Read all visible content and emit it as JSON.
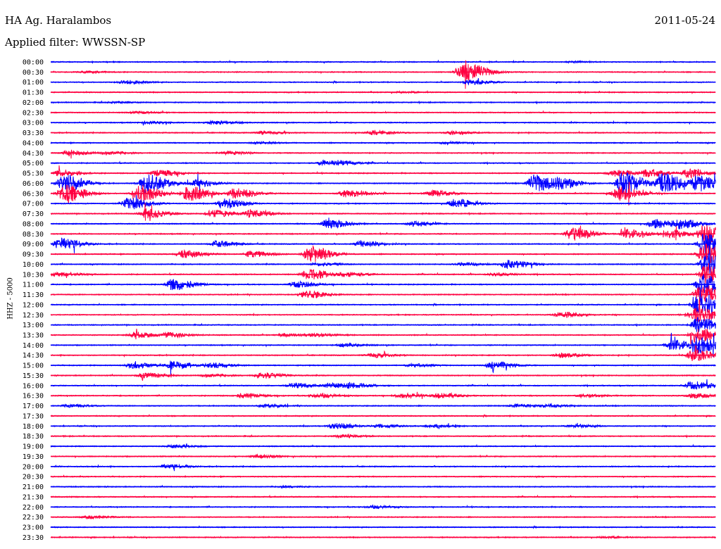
{
  "header": {
    "station": "HA Ag. Haralambos",
    "date": "2011-05-24",
    "filter": "Applied filter: WWSSN-SP"
  },
  "colors": {
    "trace_a": "#0000ff",
    "trace_b": "#ff0040",
    "text": "#000000",
    "background": "#ffffff"
  },
  "chart_data": {
    "type": "line",
    "title": "HA Ag. Haralambos",
    "subtitle": "Applied filter: WWSSN-SP",
    "date": "2011-05-24",
    "ylabel": "HHZ - 5000",
    "xlabel": "",
    "x_range_minutes": [
      0,
      30
    ],
    "grid": false,
    "legend": "none",
    "series_colors": [
      "#0000ff",
      "#ff0040"
    ],
    "rows": [
      {
        "label": "00:00",
        "events": [
          [
            23.5,
            0.6
          ]
        ]
      },
      {
        "label": "00:30",
        "events": [
          [
            18.6,
            9
          ],
          [
            19.0,
            4
          ],
          [
            1.5,
            1
          ]
        ]
      },
      {
        "label": "01:00",
        "events": [
          [
            3.3,
            2.5
          ],
          [
            18.9,
            3
          ]
        ]
      },
      {
        "label": "01:30",
        "events": [
          [
            15.8,
            0.8
          ]
        ]
      },
      {
        "label": "02:00",
        "events": [
          [
            2.8,
            0.8
          ]
        ]
      },
      {
        "label": "02:30",
        "events": [
          [
            3.8,
            1.2
          ]
        ]
      },
      {
        "label": "03:00",
        "events": [
          [
            4.3,
            1.5
          ],
          [
            7.3,
            2.5
          ]
        ]
      },
      {
        "label": "03:30",
        "events": [
          [
            9.5,
            2
          ],
          [
            14.5,
            2.5
          ],
          [
            18.0,
            2
          ]
        ]
      },
      {
        "label": "04:00",
        "events": [
          [
            9.3,
            1.5
          ],
          [
            17.8,
            1.5
          ]
        ]
      },
      {
        "label": "04:30",
        "events": [
          [
            0.8,
            3
          ],
          [
            2.5,
            2
          ],
          [
            8.0,
            2
          ]
        ]
      },
      {
        "label": "05:00",
        "events": [
          [
            12.3,
            3
          ],
          [
            13.0,
            2
          ]
        ]
      },
      {
        "label": "05:30",
        "events": [
          [
            0.4,
            4
          ],
          [
            4.8,
            4
          ],
          [
            25.4,
            4
          ],
          [
            26.9,
            5
          ],
          [
            28.8,
            6
          ]
        ]
      },
      {
        "label": "06:00",
        "events": [
          [
            0.6,
            13
          ],
          [
            4.3,
            14
          ],
          [
            6.5,
            5
          ],
          [
            21.8,
            12
          ],
          [
            23.0,
            6
          ],
          [
            25.8,
            16
          ],
          [
            27.6,
            14
          ],
          [
            29.2,
            11
          ]
        ]
      },
      {
        "label": "06:30",
        "events": [
          [
            0.6,
            13
          ],
          [
            4.0,
            12
          ],
          [
            6.2,
            10
          ],
          [
            8.3,
            7
          ],
          [
            13.3,
            5
          ],
          [
            17.2,
            4
          ],
          [
            25.6,
            10
          ]
        ]
      },
      {
        "label": "07:00",
        "events": [
          [
            3.5,
            8
          ],
          [
            7.8,
            7
          ],
          [
            18.2,
            6
          ]
        ]
      },
      {
        "label": "07:30",
        "events": [
          [
            4.3,
            6
          ],
          [
            7.3,
            5
          ],
          [
            9.0,
            5
          ]
        ]
      },
      {
        "label": "08:00",
        "events": [
          [
            12.5,
            6
          ],
          [
            16.3,
            3
          ],
          [
            27.2,
            6
          ],
          [
            28.4,
            6
          ]
        ]
      },
      {
        "label": "08:30",
        "events": [
          [
            23.5,
            9
          ],
          [
            26.0,
            6
          ],
          [
            28.0,
            5
          ],
          [
            29.5,
            14
          ]
        ]
      },
      {
        "label": "09:00",
        "events": [
          [
            0.4,
            8
          ],
          [
            7.5,
            4
          ],
          [
            14.0,
            4
          ],
          [
            29.5,
            15
          ]
        ]
      },
      {
        "label": "09:30",
        "events": [
          [
            6.0,
            5
          ],
          [
            11.7,
            12
          ],
          [
            9.0,
            4
          ],
          [
            29.5,
            15
          ]
        ]
      },
      {
        "label": "10:00",
        "events": [
          [
            12.0,
            2
          ],
          [
            18.5,
            2
          ],
          [
            20.6,
            6
          ],
          [
            29.6,
            16
          ]
        ]
      },
      {
        "label": "10:30",
        "events": [
          [
            0.3,
            3
          ],
          [
            11.6,
            8
          ],
          [
            13.3,
            3
          ],
          [
            20.0,
            2
          ],
          [
            29.6,
            16
          ]
        ]
      },
      {
        "label": "11:00",
        "events": [
          [
            5.5,
            8
          ],
          [
            11.0,
            4
          ],
          [
            29.4,
            14
          ]
        ]
      },
      {
        "label": "11:30",
        "events": [
          [
            11.5,
            5
          ],
          [
            29.3,
            13
          ]
        ]
      },
      {
        "label": "12:00",
        "events": [
          [
            29.2,
            12
          ]
        ]
      },
      {
        "label": "12:30",
        "events": [
          [
            23.0,
            4
          ],
          [
            29.1,
            10
          ]
        ]
      },
      {
        "label": "13:00",
        "events": [
          [
            29.2,
            10
          ]
        ]
      },
      {
        "label": "13:30",
        "events": [
          [
            3.8,
            4
          ],
          [
            5.3,
            3
          ],
          [
            10.5,
            2
          ],
          [
            11.9,
            2
          ],
          [
            29.1,
            10
          ]
        ]
      },
      {
        "label": "14:00",
        "events": [
          [
            13.2,
            2
          ],
          [
            28.0,
            7
          ],
          [
            29.2,
            10
          ]
        ]
      },
      {
        "label": "14:30",
        "events": [
          [
            14.5,
            3
          ],
          [
            23.0,
            3
          ],
          [
            29.0,
            8
          ]
        ]
      },
      {
        "label": "15:00",
        "events": [
          [
            3.7,
            4
          ],
          [
            5.5,
            5
          ],
          [
            7.2,
            3
          ],
          [
            16.3,
            2
          ],
          [
            20.0,
            5
          ]
        ]
      },
      {
        "label": "15:30",
        "events": [
          [
            4.2,
            3
          ],
          [
            9.5,
            4
          ],
          [
            7.0,
            2
          ]
        ]
      },
      {
        "label": "16:00",
        "events": [
          [
            11.0,
            3
          ],
          [
            12.6,
            3
          ],
          [
            13.5,
            3
          ],
          [
            28.9,
            6
          ]
        ]
      },
      {
        "label": "16:30",
        "events": [
          [
            8.6,
            3
          ],
          [
            12.0,
            3
          ],
          [
            15.8,
            3
          ],
          [
            17.5,
            3
          ],
          [
            24.0,
            2
          ],
          [
            29.0,
            3
          ]
        ]
      },
      {
        "label": "17:00",
        "events": [
          [
            0.8,
            2
          ],
          [
            9.6,
            2
          ],
          [
            21.0,
            2
          ],
          [
            22.4,
            2
          ]
        ]
      },
      {
        "label": "17:30",
        "events": []
      },
      {
        "label": "18:00",
        "events": [
          [
            12.8,
            4
          ],
          [
            14.8,
            2
          ],
          [
            17.2,
            2
          ],
          [
            23.6,
            2
          ]
        ]
      },
      {
        "label": "18:30",
        "events": [
          [
            13.1,
            2
          ]
        ]
      },
      {
        "label": "19:00",
        "events": [
          [
            5.5,
            2
          ]
        ]
      },
      {
        "label": "19:30",
        "events": [
          [
            9.3,
            2
          ]
        ]
      },
      {
        "label": "20:00",
        "events": [
          [
            5.2,
            2.5
          ]
        ]
      },
      {
        "label": "20:30",
        "events": []
      },
      {
        "label": "21:00",
        "events": [
          [
            10.5,
            1
          ]
        ]
      },
      {
        "label": "21:30",
        "events": []
      },
      {
        "label": "22:00",
        "events": [
          [
            14.5,
            2
          ]
        ]
      },
      {
        "label": "22:30",
        "events": [
          [
            1.7,
            2
          ]
        ]
      },
      {
        "label": "23:00",
        "events": []
      },
      {
        "label": "23:30",
        "events": [
          [
            25.0,
            1
          ]
        ]
      }
    ]
  }
}
